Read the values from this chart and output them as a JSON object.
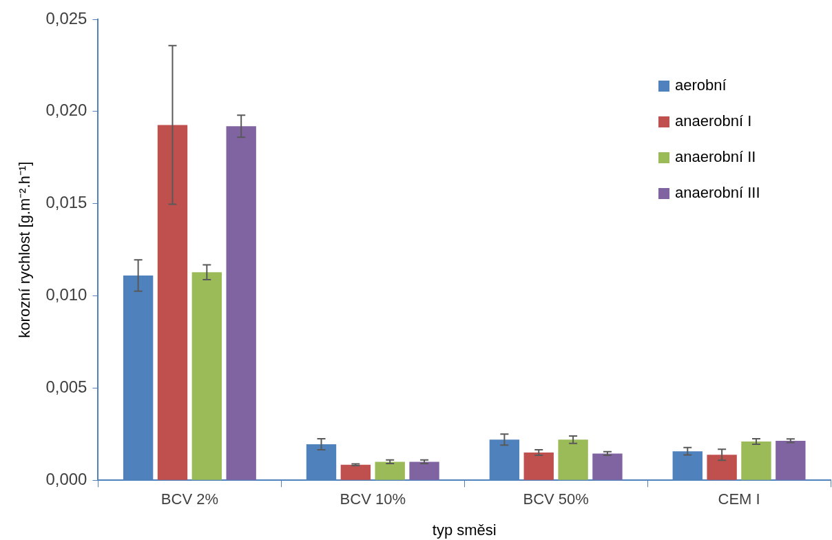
{
  "chart_data": {
    "type": "bar",
    "xlabel": "typ směsi",
    "ylabel": "korozní rychlost [g.m⁻².h⁻¹]",
    "categories": [
      "BCV 2%",
      "BCV 10%",
      "BCV 50%",
      "CEM I"
    ],
    "series": [
      {
        "name": "aerobní",
        "color": "#4f81bd",
        "values": [
          0.0111,
          0.00195,
          0.0022,
          0.00157
        ],
        "errors": [
          0.00085,
          0.0003,
          0.0003,
          0.0002
        ]
      },
      {
        "name": "anaerobní I",
        "color": "#c0504d",
        "values": [
          0.01927,
          0.00084,
          0.0015,
          0.00138
        ],
        "errors": [
          0.0043,
          5e-05,
          0.00015,
          0.0003
        ]
      },
      {
        "name": "anaerobní II",
        "color": "#9bbb59",
        "values": [
          0.01128,
          0.001,
          0.0022,
          0.0021
        ],
        "errors": [
          0.0004,
          0.0001,
          0.0002,
          0.00015
        ]
      },
      {
        "name": "anaerobní III",
        "color": "#8064a2",
        "values": [
          0.0192,
          0.001,
          0.00145,
          0.00214
        ],
        "errors": [
          0.0006,
          0.0001,
          0.0001,
          0.0001
        ]
      }
    ],
    "ylim": [
      0,
      0.025
    ],
    "yticks": [
      {
        "value": 0,
        "label": "0,000"
      },
      {
        "value": 0.005,
        "label": "0,005"
      },
      {
        "value": 0.01,
        "label": "0,010"
      },
      {
        "value": 0.015,
        "label": "0,015"
      },
      {
        "value": 0.02,
        "label": "0,020"
      },
      {
        "value": 0.025,
        "label": "0,025"
      }
    ],
    "grid": false,
    "legend": "top right"
  }
}
